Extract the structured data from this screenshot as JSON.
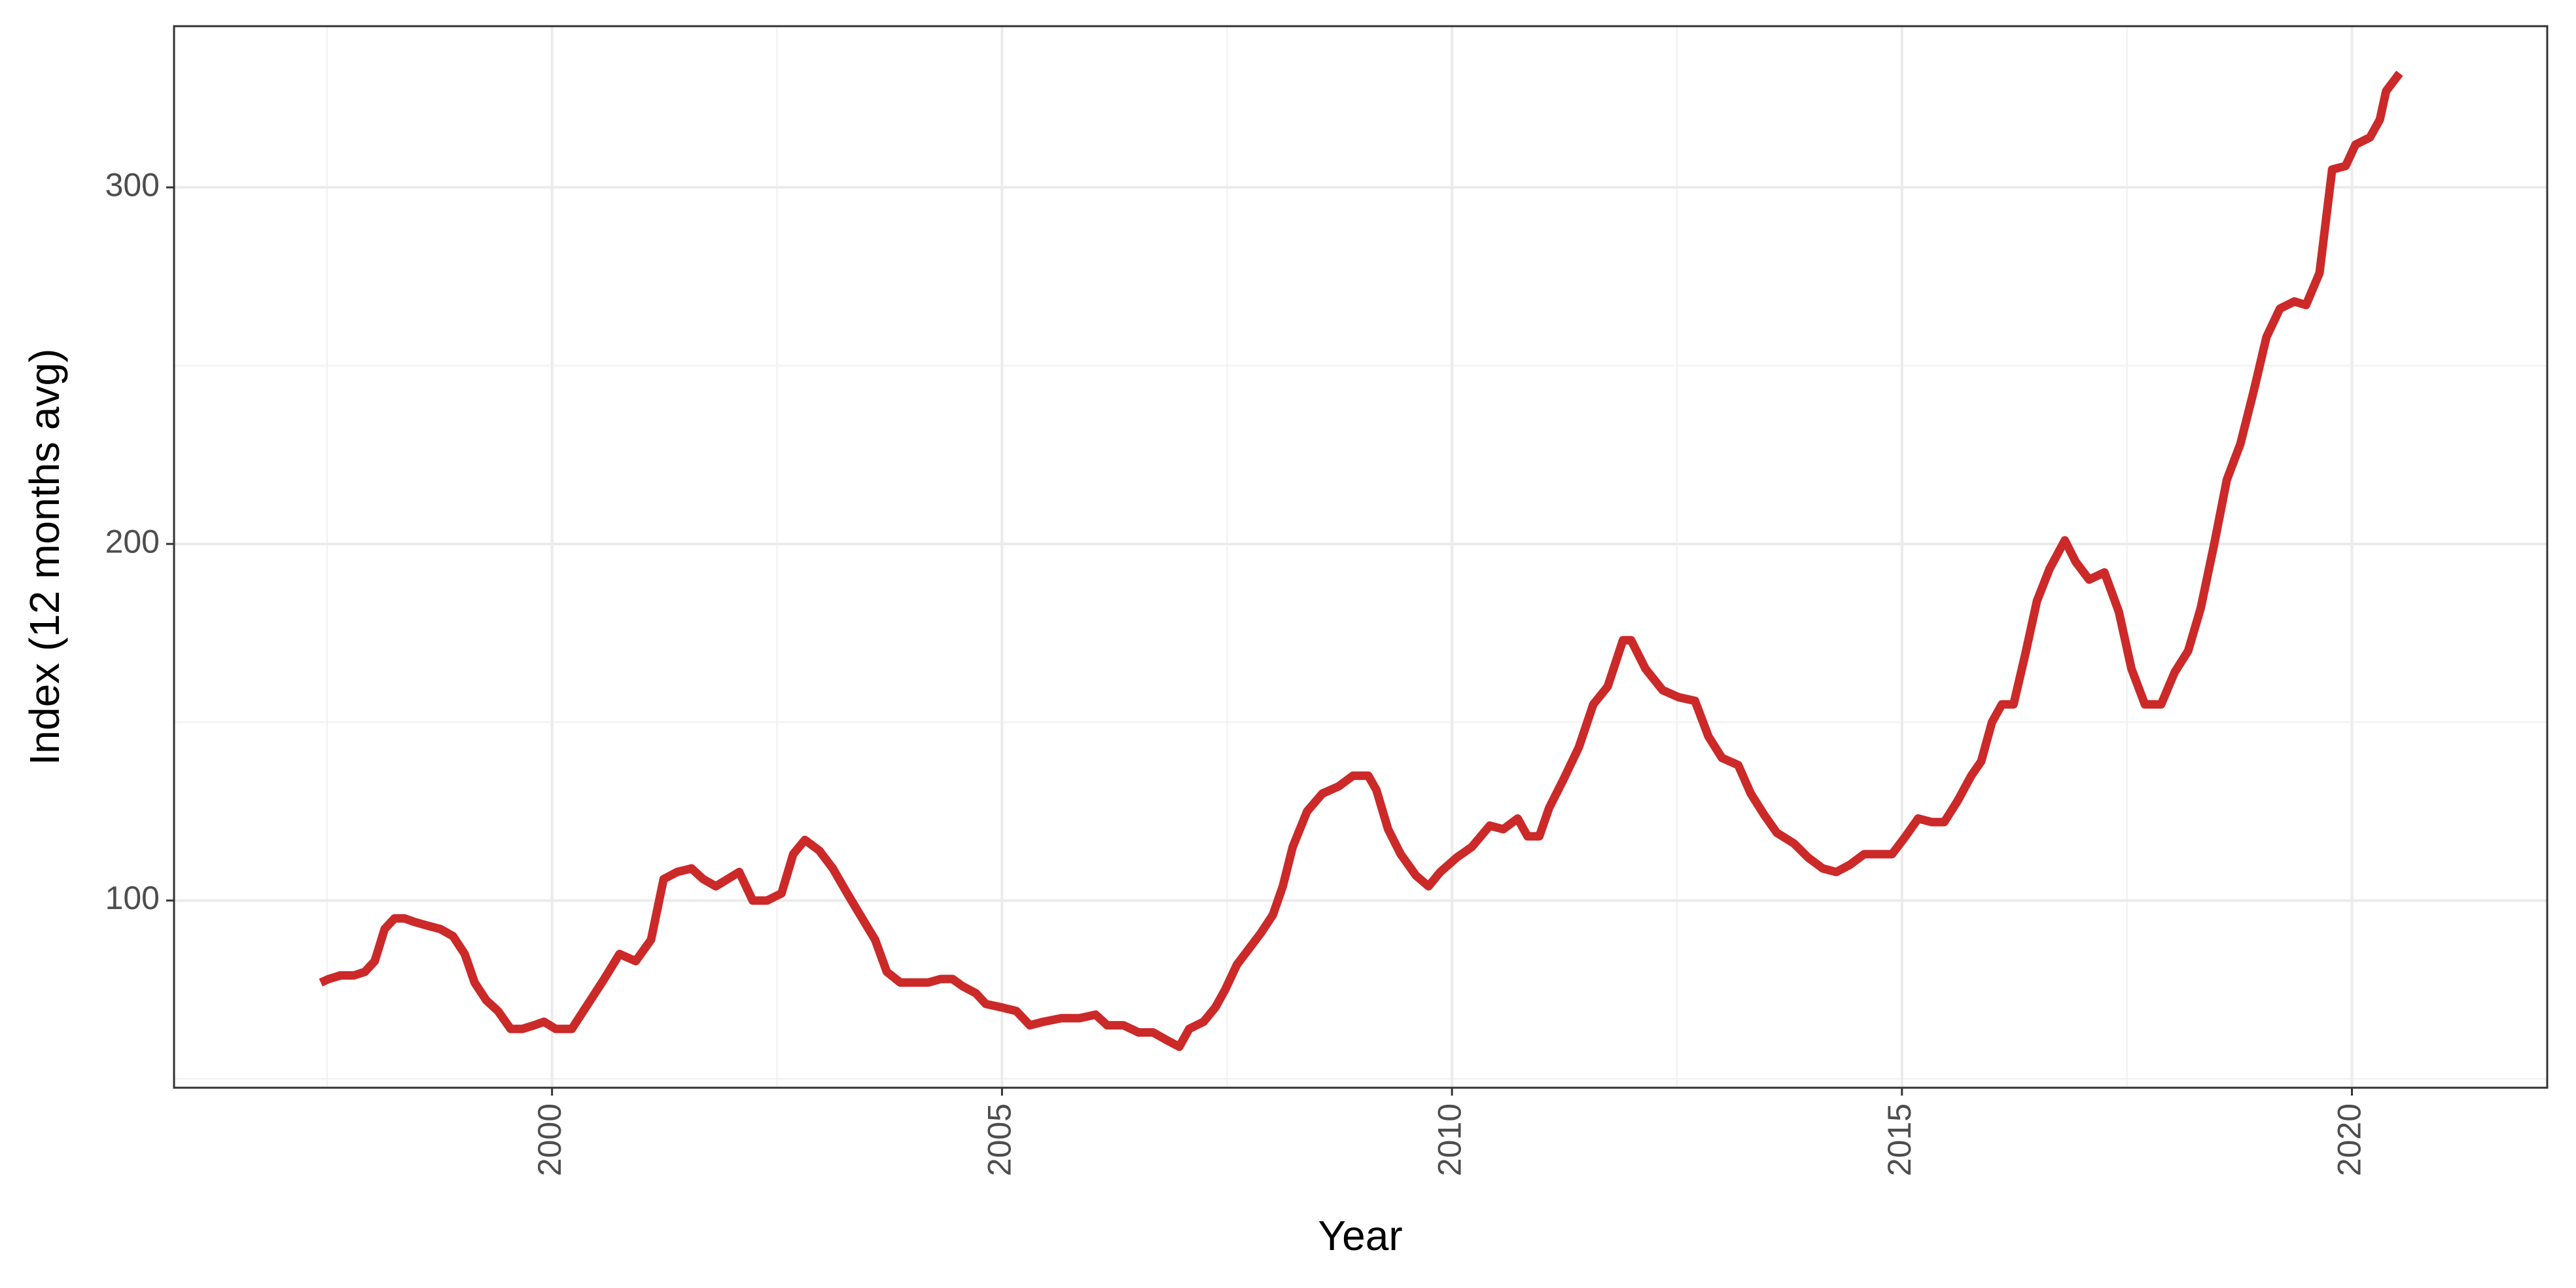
{
  "chart_data": {
    "type": "line",
    "x_label": "Year",
    "y_label": "Index (12 months avg)",
    "xlim": [
      1995.8,
      2022.17
    ],
    "ylim": [
      47.5,
      345.2
    ],
    "xticks": [
      2000,
      2005,
      2010,
      2015,
      2020
    ],
    "yticks": [
      100,
      200,
      300
    ],
    "grid": true,
    "x": [
      1997.43,
      1997.52,
      1997.65,
      1997.8,
      1997.92,
      1998.03,
      1998.14,
      1998.25,
      1998.36,
      1998.47,
      1998.61,
      1998.76,
      1998.9,
      1999.03,
      1999.14,
      1999.27,
      1999.4,
      1999.54,
      1999.67,
      1999.8,
      1999.91,
      2000.04,
      2000.22,
      2000.4,
      2000.58,
      2000.75,
      2000.93,
      2001.1,
      2001.24,
      2001.39,
      2001.55,
      2001.68,
      2001.82,
      2001.95,
      2002.08,
      2002.23,
      2002.39,
      2002.55,
      2002.68,
      2002.81,
      2002.97,
      2003.12,
      2003.28,
      2003.47,
      2003.59,
      2003.72,
      2003.87,
      2004.01,
      2004.18,
      2004.32,
      2004.45,
      2004.56,
      2004.71,
      2004.82,
      2005.0,
      2005.16,
      2005.31,
      2005.46,
      2005.66,
      2005.86,
      2006.04,
      2006.17,
      2006.35,
      2006.52,
      2006.68,
      2006.82,
      2006.97,
      2007.08,
      2007.24,
      2007.37,
      2007.48,
      2007.61,
      2007.76,
      2007.88,
      2008.01,
      2008.12,
      2008.23,
      2008.39,
      2008.56,
      2008.74,
      2008.9,
      2009.07,
      2009.16,
      2009.29,
      2009.43,
      2009.6,
      2009.74,
      2009.87,
      2010.05,
      2010.22,
      2010.42,
      2010.57,
      2010.73,
      2010.84,
      2010.97,
      2011.08,
      2011.24,
      2011.41,
      2011.57,
      2011.73,
      2011.9,
      2011.99,
      2012.15,
      2012.34,
      2012.52,
      2012.7,
      2012.85,
      2013.0,
      2013.18,
      2013.32,
      2013.47,
      2013.61,
      2013.8,
      2013.96,
      2014.12,
      2014.27,
      2014.42,
      2014.58,
      2014.74,
      2014.89,
      2015.04,
      2015.18,
      2015.33,
      2015.47,
      2015.62,
      2015.77,
      2015.88,
      2016.0,
      2016.11,
      2016.24,
      2016.37,
      2016.5,
      2016.64,
      2016.81,
      2016.93,
      2017.08,
      2017.25,
      2017.41,
      2017.55,
      2017.7,
      2017.88,
      2018.03,
      2018.18,
      2018.32,
      2018.47,
      2018.61,
      2018.76,
      2018.91,
      2019.05,
      2019.2,
      2019.36,
      2019.49,
      2019.64,
      2019.78,
      2019.93,
      2020.04,
      2020.2,
      2020.31,
      2020.38,
      2020.53
    ],
    "series": [
      {
        "color": "#cc2929",
        "values": [
          77,
          78,
          79,
          79,
          80,
          83,
          92,
          95,
          95,
          94,
          93,
          92,
          90,
          85,
          77,
          72,
          69,
          64,
          64,
          65,
          66,
          64,
          64,
          71,
          78,
          85,
          83,
          89,
          106,
          108,
          109,
          106,
          104,
          106,
          108,
          100,
          100,
          102,
          113,
          117,
          114,
          109,
          102,
          94,
          89,
          80,
          77,
          77,
          77,
          78,
          78,
          76,
          74,
          71,
          70,
          69,
          65,
          66,
          67,
          67,
          68,
          65,
          65,
          63,
          63,
          61,
          59,
          64,
          66,
          70,
          75,
          82,
          87,
          91,
          96,
          104,
          115,
          125,
          130,
          132,
          135,
          135,
          131,
          120,
          113,
          107,
          104,
          108,
          112,
          115,
          121,
          120,
          123,
          118,
          118,
          126,
          134,
          143,
          155,
          160,
          173,
          173,
          165,
          159,
          157,
          156,
          146,
          140,
          138,
          130,
          124,
          119,
          116,
          112,
          109,
          108,
          110,
          113,
          113,
          113,
          118,
          123,
          122,
          122,
          128,
          135,
          139,
          150,
          155,
          155,
          169,
          184,
          193,
          201,
          195,
          190,
          192,
          181,
          165,
          155,
          155,
          164,
          170,
          182,
          200,
          218,
          228,
          243,
          258,
          266,
          268,
          267,
          276,
          305,
          306,
          312,
          314,
          319,
          327,
          332
        ]
      }
    ]
  }
}
